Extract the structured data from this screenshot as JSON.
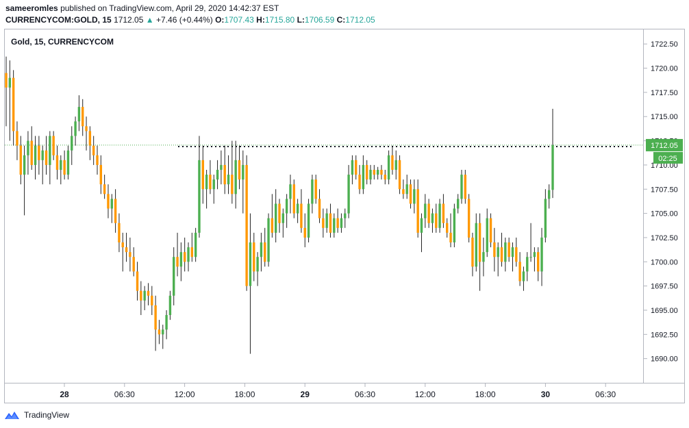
{
  "header": {
    "author": "sameeromles",
    "published_text": "published on TradingView.com, April 29, 2020 14:42:37 EST",
    "symbol": "CURRENCYCOM:GOLD, 15",
    "last": "1712.05",
    "change_arrow": "▲",
    "change": "+7.46 (+0.44%)",
    "o_label": "O:",
    "o_value": "1707.43",
    "h_label": "H:",
    "h_value": "1715.80",
    "l_label": "L:",
    "l_value": "1706.59",
    "c_label": "C:",
    "c_value": "1712.05"
  },
  "footer": {
    "brand": "TradingView"
  },
  "colors": {
    "up": "#4caf50",
    "down": "#ff9800",
    "wick": "#222222",
    "axis": "#787b86",
    "price_line": "#4caf50",
    "accent": "#26a69a"
  },
  "chart_data": {
    "type": "candlestick",
    "title": "Gold, 15, CURRENCYCOM",
    "y_ticks": [
      "1722.50",
      "1720.00",
      "1717.50",
      "1715.00",
      "1712.50",
      "1710.00",
      "1707.50",
      "1705.00",
      "1702.50",
      "1700.00",
      "1697.50",
      "1695.00",
      "1692.50",
      "1690.00"
    ],
    "x_ticks": [
      "28",
      "06:30",
      "12:00",
      "18:00",
      "29",
      "06:30",
      "12:00",
      "18:00",
      "30",
      "06:30"
    ],
    "ylim": [
      1687.5,
      1724.0
    ],
    "current_price": "1712.05",
    "countdown": "02:25",
    "resistance_level": 1711.9,
    "series": [
      {
        "o": 1719.5,
        "h": 1721.2,
        "l": 1714.0,
        "c": 1718.0
      },
      {
        "o": 1718.0,
        "h": 1720.8,
        "l": 1712.5,
        "c": 1719.0
      },
      {
        "o": 1719.0,
        "h": 1719.8,
        "l": 1712.0,
        "c": 1713.5
      },
      {
        "o": 1713.5,
        "h": 1714.5,
        "l": 1710.5,
        "c": 1712.0
      },
      {
        "o": 1712.0,
        "h": 1713.0,
        "l": 1708.0,
        "c": 1709.0
      },
      {
        "o": 1709.0,
        "h": 1712.0,
        "l": 1704.8,
        "c": 1711.0
      },
      {
        "o": 1711.0,
        "h": 1713.5,
        "l": 1709.0,
        "c": 1712.5
      },
      {
        "o": 1712.5,
        "h": 1714.0,
        "l": 1709.5,
        "c": 1710.0
      },
      {
        "o": 1710.0,
        "h": 1713.0,
        "l": 1708.5,
        "c": 1712.0
      },
      {
        "o": 1712.0,
        "h": 1713.0,
        "l": 1709.0,
        "c": 1710.5
      },
      {
        "o": 1710.5,
        "h": 1712.0,
        "l": 1708.0,
        "c": 1711.5
      },
      {
        "o": 1711.5,
        "h": 1713.0,
        "l": 1709.0,
        "c": 1710.0
      },
      {
        "o": 1710.0,
        "h": 1713.5,
        "l": 1708.0,
        "c": 1713.0
      },
      {
        "o": 1713.0,
        "h": 1713.5,
        "l": 1710.5,
        "c": 1711.0
      },
      {
        "o": 1711.0,
        "h": 1712.0,
        "l": 1708.5,
        "c": 1709.5
      },
      {
        "o": 1709.5,
        "h": 1711.0,
        "l": 1708.0,
        "c": 1710.5
      },
      {
        "o": 1710.5,
        "h": 1711.5,
        "l": 1708.5,
        "c": 1709.0
      },
      {
        "o": 1709.0,
        "h": 1712.0,
        "l": 1708.5,
        "c": 1711.5
      },
      {
        "o": 1711.5,
        "h": 1714.0,
        "l": 1710.0,
        "c": 1713.0
      },
      {
        "o": 1713.0,
        "h": 1715.0,
        "l": 1712.0,
        "c": 1714.5
      },
      {
        "o": 1714.5,
        "h": 1717.2,
        "l": 1713.5,
        "c": 1716.0
      },
      {
        "o": 1716.0,
        "h": 1716.8,
        "l": 1713.0,
        "c": 1714.0
      },
      {
        "o": 1714.0,
        "h": 1715.0,
        "l": 1711.5,
        "c": 1713.5
      },
      {
        "o": 1713.5,
        "h": 1714.0,
        "l": 1710.5,
        "c": 1712.0
      },
      {
        "o": 1712.0,
        "h": 1713.0,
        "l": 1710.0,
        "c": 1711.0
      },
      {
        "o": 1711.0,
        "h": 1712.0,
        "l": 1709.0,
        "c": 1710.0
      },
      {
        "o": 1710.0,
        "h": 1711.0,
        "l": 1707.0,
        "c": 1708.0
      },
      {
        "o": 1708.0,
        "h": 1709.0,
        "l": 1706.5,
        "c": 1707.0
      },
      {
        "o": 1707.0,
        "h": 1708.0,
        "l": 1704.5,
        "c": 1705.5
      },
      {
        "o": 1705.5,
        "h": 1707.0,
        "l": 1704.0,
        "c": 1706.5
      },
      {
        "o": 1706.5,
        "h": 1707.5,
        "l": 1703.0,
        "c": 1704.0
      },
      {
        "o": 1704.0,
        "h": 1705.0,
        "l": 1701.0,
        "c": 1702.0
      },
      {
        "o": 1702.0,
        "h": 1703.0,
        "l": 1699.0,
        "c": 1701.5
      },
      {
        "o": 1701.5,
        "h": 1703.0,
        "l": 1700.0,
        "c": 1701.0
      },
      {
        "o": 1701.0,
        "h": 1702.5,
        "l": 1699.0,
        "c": 1700.5
      },
      {
        "o": 1700.5,
        "h": 1701.5,
        "l": 1698.5,
        "c": 1699.0
      },
      {
        "o": 1699.0,
        "h": 1700.0,
        "l": 1696.0,
        "c": 1697.0
      },
      {
        "o": 1697.0,
        "h": 1698.0,
        "l": 1694.5,
        "c": 1696.0
      },
      {
        "o": 1696.0,
        "h": 1697.5,
        "l": 1695.0,
        "c": 1697.0
      },
      {
        "o": 1697.0,
        "h": 1697.8,
        "l": 1695.5,
        "c": 1696.5
      },
      {
        "o": 1696.5,
        "h": 1697.5,
        "l": 1694.5,
        "c": 1695.5
      },
      {
        "o": 1695.5,
        "h": 1696.5,
        "l": 1690.8,
        "c": 1693.0
      },
      {
        "o": 1693.0,
        "h": 1694.0,
        "l": 1691.5,
        "c": 1692.5
      },
      {
        "o": 1692.5,
        "h": 1693.5,
        "l": 1691.0,
        "c": 1693.0
      },
      {
        "o": 1693.0,
        "h": 1695.0,
        "l": 1692.0,
        "c": 1694.5
      },
      {
        "o": 1694.5,
        "h": 1697.0,
        "l": 1694.0,
        "c": 1696.5
      },
      {
        "o": 1696.5,
        "h": 1701.5,
        "l": 1695.5,
        "c": 1700.5
      },
      {
        "o": 1700.5,
        "h": 1703.0,
        "l": 1698.5,
        "c": 1699.5
      },
      {
        "o": 1699.5,
        "h": 1702.0,
        "l": 1698.0,
        "c": 1701.0
      },
      {
        "o": 1701.0,
        "h": 1702.5,
        "l": 1699.0,
        "c": 1700.0
      },
      {
        "o": 1700.0,
        "h": 1702.0,
        "l": 1699.0,
        "c": 1701.5
      },
      {
        "o": 1701.5,
        "h": 1703.0,
        "l": 1700.0,
        "c": 1700.5
      },
      {
        "o": 1700.5,
        "h": 1703.5,
        "l": 1700.0,
        "c": 1703.0
      },
      {
        "o": 1703.0,
        "h": 1713.0,
        "l": 1702.5,
        "c": 1710.5
      },
      {
        "o": 1710.5,
        "h": 1712.0,
        "l": 1706.0,
        "c": 1707.5
      },
      {
        "o": 1707.5,
        "h": 1709.5,
        "l": 1705.5,
        "c": 1709.0
      },
      {
        "o": 1709.0,
        "h": 1710.5,
        "l": 1707.0,
        "c": 1707.5
      },
      {
        "o": 1707.5,
        "h": 1709.0,
        "l": 1706.0,
        "c": 1708.5
      },
      {
        "o": 1708.5,
        "h": 1710.5,
        "l": 1707.5,
        "c": 1709.5
      },
      {
        "o": 1709.5,
        "h": 1711.5,
        "l": 1708.0,
        "c": 1710.0
      },
      {
        "o": 1710.0,
        "h": 1712.0,
        "l": 1707.0,
        "c": 1708.0
      },
      {
        "o": 1708.0,
        "h": 1711.0,
        "l": 1707.0,
        "c": 1709.0
      },
      {
        "o": 1709.0,
        "h": 1712.5,
        "l": 1706.0,
        "c": 1707.0
      },
      {
        "o": 1707.0,
        "h": 1712.5,
        "l": 1705.5,
        "c": 1710.5
      },
      {
        "o": 1710.5,
        "h": 1712.0,
        "l": 1707.5,
        "c": 1708.5
      },
      {
        "o": 1708.5,
        "h": 1711.5,
        "l": 1705.0,
        "c": 1710.0
      },
      {
        "o": 1710.0,
        "h": 1711.0,
        "l": 1697.0,
        "c": 1697.5
      },
      {
        "o": 1697.5,
        "h": 1705.0,
        "l": 1690.5,
        "c": 1702.0
      },
      {
        "o": 1702.0,
        "h": 1703.0,
        "l": 1698.0,
        "c": 1699.0
      },
      {
        "o": 1699.0,
        "h": 1701.0,
        "l": 1697.5,
        "c": 1700.5
      },
      {
        "o": 1700.5,
        "h": 1703.0,
        "l": 1699.0,
        "c": 1702.0
      },
      {
        "o": 1702.0,
        "h": 1703.5,
        "l": 1699.5,
        "c": 1700.0
      },
      {
        "o": 1700.0,
        "h": 1705.0,
        "l": 1699.5,
        "c": 1704.5
      },
      {
        "o": 1704.5,
        "h": 1707.0,
        "l": 1702.5,
        "c": 1703.0
      },
      {
        "o": 1703.0,
        "h": 1707.5,
        "l": 1702.0,
        "c": 1706.0
      },
      {
        "o": 1706.0,
        "h": 1706.5,
        "l": 1703.0,
        "c": 1704.0
      },
      {
        "o": 1704.0,
        "h": 1705.5,
        "l": 1702.5,
        "c": 1705.0
      },
      {
        "o": 1705.0,
        "h": 1707.0,
        "l": 1703.5,
        "c": 1706.5
      },
      {
        "o": 1706.5,
        "h": 1709.0,
        "l": 1705.0,
        "c": 1708.0
      },
      {
        "o": 1708.0,
        "h": 1708.5,
        "l": 1704.5,
        "c": 1705.0
      },
      {
        "o": 1705.0,
        "h": 1706.5,
        "l": 1704.0,
        "c": 1706.0
      },
      {
        "o": 1706.0,
        "h": 1707.5,
        "l": 1703.0,
        "c": 1703.5
      },
      {
        "o": 1703.5,
        "h": 1705.0,
        "l": 1701.5,
        "c": 1702.5
      },
      {
        "o": 1702.5,
        "h": 1706.5,
        "l": 1702.0,
        "c": 1706.0
      },
      {
        "o": 1706.0,
        "h": 1709.0,
        "l": 1705.0,
        "c": 1708.5
      },
      {
        "o": 1708.5,
        "h": 1709.0,
        "l": 1706.0,
        "c": 1706.5
      },
      {
        "o": 1706.5,
        "h": 1707.5,
        "l": 1704.0,
        "c": 1704.5
      },
      {
        "o": 1704.5,
        "h": 1705.5,
        "l": 1702.5,
        "c": 1703.5
      },
      {
        "o": 1703.5,
        "h": 1705.5,
        "l": 1703.0,
        "c": 1705.0
      },
      {
        "o": 1705.0,
        "h": 1706.0,
        "l": 1702.5,
        "c": 1703.0
      },
      {
        "o": 1703.0,
        "h": 1705.0,
        "l": 1702.5,
        "c": 1704.5
      },
      {
        "o": 1704.5,
        "h": 1705.5,
        "l": 1703.0,
        "c": 1703.5
      },
      {
        "o": 1703.5,
        "h": 1705.0,
        "l": 1703.0,
        "c": 1704.5
      },
      {
        "o": 1704.5,
        "h": 1705.5,
        "l": 1703.5,
        "c": 1705.0
      },
      {
        "o": 1705.0,
        "h": 1710.0,
        "l": 1704.5,
        "c": 1709.0
      },
      {
        "o": 1709.0,
        "h": 1711.0,
        "l": 1708.0,
        "c": 1710.5
      },
      {
        "o": 1710.5,
        "h": 1711.0,
        "l": 1708.5,
        "c": 1709.0
      },
      {
        "o": 1709.0,
        "h": 1710.0,
        "l": 1707.0,
        "c": 1707.5
      },
      {
        "o": 1707.5,
        "h": 1711.0,
        "l": 1707.0,
        "c": 1710.0
      },
      {
        "o": 1710.0,
        "h": 1710.5,
        "l": 1708.0,
        "c": 1708.5
      },
      {
        "o": 1708.5,
        "h": 1710.0,
        "l": 1708.0,
        "c": 1709.5
      },
      {
        "o": 1709.5,
        "h": 1710.0,
        "l": 1708.5,
        "c": 1709.0
      },
      {
        "o": 1709.0,
        "h": 1709.8,
        "l": 1708.5,
        "c": 1709.5
      },
      {
        "o": 1709.5,
        "h": 1710.0,
        "l": 1708.5,
        "c": 1709.0
      },
      {
        "o": 1709.0,
        "h": 1709.5,
        "l": 1708.0,
        "c": 1708.5
      },
      {
        "o": 1708.5,
        "h": 1711.5,
        "l": 1708.0,
        "c": 1711.0
      },
      {
        "o": 1711.0,
        "h": 1712.0,
        "l": 1709.0,
        "c": 1709.5
      },
      {
        "o": 1709.5,
        "h": 1711.5,
        "l": 1708.5,
        "c": 1710.5
      },
      {
        "o": 1710.5,
        "h": 1711.0,
        "l": 1707.0,
        "c": 1707.5
      },
      {
        "o": 1707.5,
        "h": 1708.5,
        "l": 1706.5,
        "c": 1707.0
      },
      {
        "o": 1707.0,
        "h": 1709.0,
        "l": 1706.5,
        "c": 1708.0
      },
      {
        "o": 1708.0,
        "h": 1708.5,
        "l": 1705.5,
        "c": 1706.0
      },
      {
        "o": 1706.0,
        "h": 1708.5,
        "l": 1705.0,
        "c": 1707.5
      },
      {
        "o": 1707.5,
        "h": 1708.5,
        "l": 1702.5,
        "c": 1703.0
      },
      {
        "o": 1703.0,
        "h": 1705.0,
        "l": 1701.0,
        "c": 1704.5
      },
      {
        "o": 1704.5,
        "h": 1707.0,
        "l": 1703.5,
        "c": 1706.0
      },
      {
        "o": 1706.0,
        "h": 1706.5,
        "l": 1703.5,
        "c": 1704.0
      },
      {
        "o": 1704.0,
        "h": 1705.5,
        "l": 1703.0,
        "c": 1705.0
      },
      {
        "o": 1705.0,
        "h": 1706.0,
        "l": 1703.0,
        "c": 1703.5
      },
      {
        "o": 1703.5,
        "h": 1706.5,
        "l": 1703.0,
        "c": 1706.0
      },
      {
        "o": 1706.0,
        "h": 1707.0,
        "l": 1703.5,
        "c": 1704.0
      },
      {
        "o": 1704.0,
        "h": 1704.5,
        "l": 1702.5,
        "c": 1703.0
      },
      {
        "o": 1703.0,
        "h": 1705.0,
        "l": 1701.5,
        "c": 1702.0
      },
      {
        "o": 1702.0,
        "h": 1706.0,
        "l": 1701.5,
        "c": 1705.5
      },
      {
        "o": 1705.5,
        "h": 1707.0,
        "l": 1705.0,
        "c": 1706.5
      },
      {
        "o": 1706.5,
        "h": 1709.5,
        "l": 1706.0,
        "c": 1709.0
      },
      {
        "o": 1709.0,
        "h": 1709.5,
        "l": 1706.0,
        "c": 1706.5
      },
      {
        "o": 1706.5,
        "h": 1707.0,
        "l": 1702.0,
        "c": 1702.5
      },
      {
        "o": 1702.5,
        "h": 1703.0,
        "l": 1698.5,
        "c": 1699.5
      },
      {
        "o": 1699.5,
        "h": 1705.0,
        "l": 1699.0,
        "c": 1704.0
      },
      {
        "o": 1704.0,
        "h": 1705.0,
        "l": 1697.0,
        "c": 1700.0
      },
      {
        "o": 1700.0,
        "h": 1702.5,
        "l": 1698.5,
        "c": 1701.0
      },
      {
        "o": 1701.0,
        "h": 1705.5,
        "l": 1700.5,
        "c": 1704.5
      },
      {
        "o": 1704.5,
        "h": 1705.0,
        "l": 1701.5,
        "c": 1702.0
      },
      {
        "o": 1702.0,
        "h": 1703.5,
        "l": 1699.0,
        "c": 1700.5
      },
      {
        "o": 1700.5,
        "h": 1702.0,
        "l": 1698.5,
        "c": 1701.5
      },
      {
        "o": 1701.5,
        "h": 1703.0,
        "l": 1699.5,
        "c": 1700.0
      },
      {
        "o": 1700.0,
        "h": 1702.5,
        "l": 1699.0,
        "c": 1702.0
      },
      {
        "o": 1702.0,
        "h": 1702.5,
        "l": 1700.0,
        "c": 1700.5
      },
      {
        "o": 1700.5,
        "h": 1702.0,
        "l": 1699.0,
        "c": 1701.5
      },
      {
        "o": 1701.5,
        "h": 1702.5,
        "l": 1699.5,
        "c": 1700.0
      },
      {
        "o": 1700.0,
        "h": 1701.0,
        "l": 1697.5,
        "c": 1698.0
      },
      {
        "o": 1698.0,
        "h": 1699.5,
        "l": 1697.0,
        "c": 1699.0
      },
      {
        "o": 1699.0,
        "h": 1701.0,
        "l": 1698.0,
        "c": 1700.5
      },
      {
        "o": 1700.5,
        "h": 1704.0,
        "l": 1700.0,
        "c": 1700.5
      },
      {
        "o": 1700.5,
        "h": 1701.5,
        "l": 1699.0,
        "c": 1701.0
      },
      {
        "o": 1701.0,
        "h": 1701.5,
        "l": 1698.0,
        "c": 1699.0
      },
      {
        "o": 1699.0,
        "h": 1703.5,
        "l": 1697.5,
        "c": 1702.5
      },
      {
        "o": 1702.5,
        "h": 1707.5,
        "l": 1702.0,
        "c": 1706.5
      },
      {
        "o": 1706.5,
        "h": 1708.0,
        "l": 1705.5,
        "c": 1707.4
      },
      {
        "o": 1707.43,
        "h": 1715.8,
        "l": 1706.59,
        "c": 1712.05
      }
    ]
  }
}
